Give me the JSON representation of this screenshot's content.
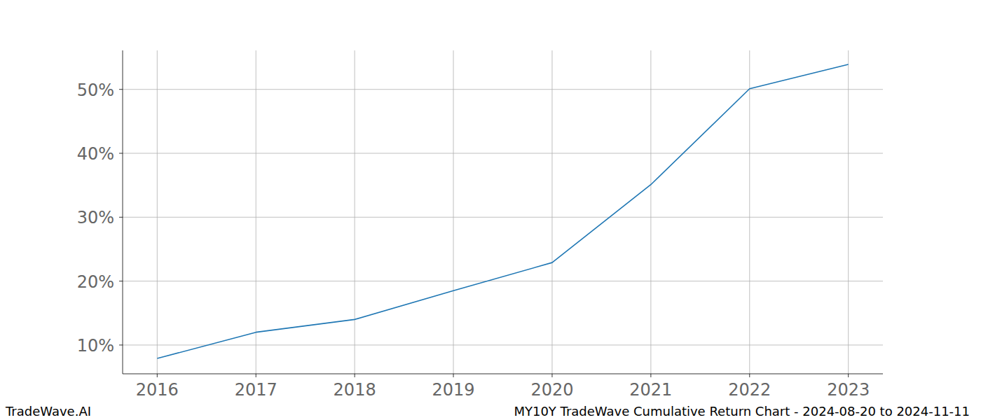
{
  "chart_data": {
    "type": "line",
    "title": "MY10Y TradeWave Cumulative Return Chart - 2024-08-20 to 2024-11-11",
    "source": "TradeWave.AI",
    "x": [
      2016,
      2017,
      2018,
      2019,
      2020,
      2021,
      2022,
      2023
    ],
    "series": [
      {
        "name": "MY10Y",
        "color": "#1f77b4",
        "values": [
          7.9,
          12.0,
          14.0,
          18.5,
          22.9,
          35.1,
          50.1,
          53.9
        ]
      }
    ],
    "xlim": [
      2015.65,
      2023.35
    ],
    "xticks": [
      2016,
      2017,
      2018,
      2019,
      2020,
      2021,
      2022,
      2023
    ],
    "ylim": [
      5.5,
      56.1
    ],
    "yticks": [
      {
        "value": 10,
        "label": "10%"
      },
      {
        "value": 20,
        "label": "20%"
      },
      {
        "value": 30,
        "label": "30%"
      },
      {
        "value": 40,
        "label": "40%"
      },
      {
        "value": 50,
        "label": "50%"
      }
    ],
    "grid": true
  }
}
